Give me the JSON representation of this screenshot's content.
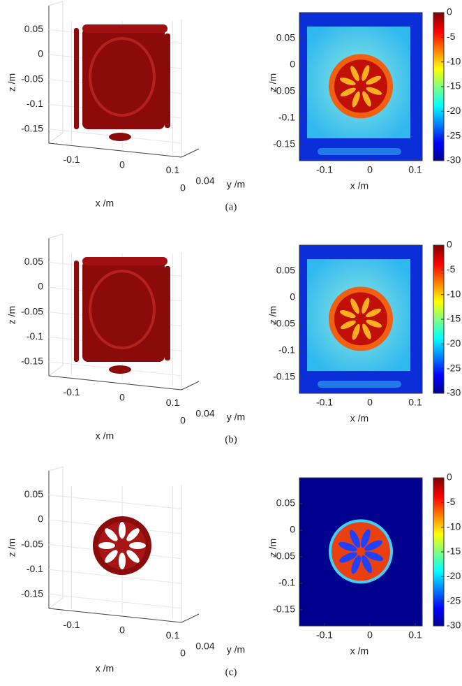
{
  "panels": [
    {
      "caption": "(a)",
      "left": {
        "z_label": "z /m",
        "x_label": "x /m",
        "y_label": "y /m",
        "z_ticks": [
          0.05,
          0,
          -0.05,
          -0.1,
          -0.15
        ],
        "x_ticks": [
          -0.1,
          0,
          0.1
        ],
        "y_ticks": [
          0,
          0.04
        ]
      },
      "right": {
        "z_label": "z /m",
        "x_label": "x /m",
        "z_ticks": [
          0.05,
          0,
          -0.05,
          -0.1,
          -0.15
        ],
        "x_ticks": [
          -0.1,
          0,
          0.1
        ],
        "colorbar_ticks": [
          0,
          -5,
          -10,
          -15,
          -20,
          -25,
          -30
        ]
      }
    },
    {
      "caption": "(b)",
      "left": {
        "z_label": "z /m",
        "x_label": "x /m",
        "y_label": "y /m",
        "z_ticks": [
          0.05,
          0,
          -0.05,
          -0.1,
          -0.15
        ],
        "x_ticks": [
          -0.1,
          0,
          0.1
        ],
        "y_ticks": [
          0,
          0.04
        ]
      },
      "right": {
        "z_label": "z /m",
        "x_label": "x /m",
        "z_ticks": [
          0.05,
          0,
          -0.05,
          -0.1,
          -0.15
        ],
        "x_ticks": [
          -0.1,
          0,
          0.1
        ],
        "colorbar_ticks": [
          0,
          -5,
          -10,
          -15,
          -20,
          -25,
          -30
        ]
      }
    },
    {
      "caption": "(c)",
      "left": {
        "z_label": "z /m",
        "x_label": "x /m",
        "y_label": "y /m",
        "z_ticks": [
          0.05,
          0,
          -0.05,
          -0.1,
          -0.15
        ],
        "x_ticks": [
          -0.1,
          0,
          0.1
        ],
        "y_ticks": [
          0,
          0.04
        ]
      },
      "right": {
        "z_label": "z /m",
        "x_label": "x /m",
        "z_ticks": [
          0.05,
          0,
          -0.05,
          -0.1,
          -0.15
        ],
        "x_ticks": [
          -0.1,
          0,
          0.1
        ],
        "colorbar_ticks": [
          0,
          -5,
          -10,
          -15,
          -20,
          -25,
          -30
        ]
      }
    }
  ]
}
